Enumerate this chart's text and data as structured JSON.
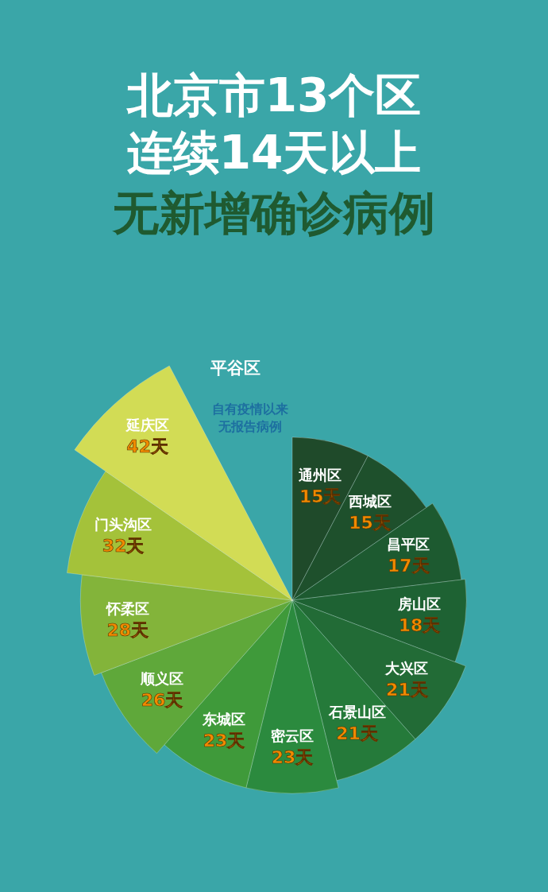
{
  "chart_data": {
    "type": "other",
    "title": "北京市13个区连续14天以上",
    "subtitle": "无新增确诊病例",
    "categories": [
      "通州区",
      "西城区",
      "昌平区",
      "房山区",
      "大兴区",
      "石景山区",
      "密云区",
      "东城区",
      "顺义区",
      "怀柔区",
      "门头沟区",
      "延庆区",
      "平谷区"
    ],
    "values": [
      15,
      15,
      17,
      18,
      21,
      21,
      23,
      23,
      26,
      28,
      32,
      42,
      null
    ],
    "value_labels": [
      "15天",
      "15天",
      "17天",
      "18天",
      "21天",
      "21天",
      "23天",
      "23天",
      "26天",
      "28天",
      "32天",
      "42天",
      null
    ],
    "colors": [
      "#1f4a2a",
      "#1e502c",
      "#1d5a30",
      "#1e6233",
      "#226b36",
      "#257a3a",
      "#2b8a3e",
      "#3f9a3a",
      "#5fa83a",
      "#83b43a",
      "#a4c23a",
      "#d2dc55",
      "#f0eea0"
    ],
    "annotations": [
      "自有疫情以来无报告病例"
    ]
  }
}
